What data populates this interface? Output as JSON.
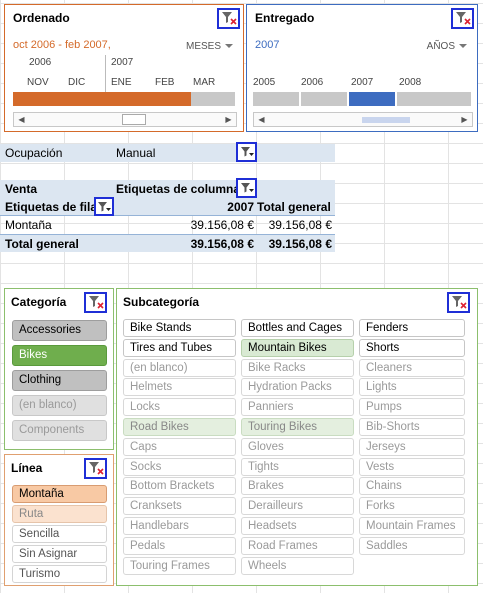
{
  "timeline_ordenado": {
    "title": "Ordenado",
    "range": "oct 2006 - feb 2007,",
    "level": "MESES",
    "years": [
      "2006",
      "2007"
    ],
    "months": [
      "NOV",
      "DIC",
      "ENE",
      "FEB",
      "MAR"
    ],
    "accent": "#d46a2a"
  },
  "timeline_entregado": {
    "title": "Entregado",
    "range": "2007",
    "level": "AÑOS",
    "years": [
      "2005",
      "2006",
      "2007",
      "2008"
    ],
    "accent": "#3d6cc0"
  },
  "pivot": {
    "ocupacion_label": "Ocupación",
    "ocupacion_value": "Manual",
    "venta_label": "Venta",
    "col_labels": "Etiquetas de columna",
    "row_labels": "Etiquetas de fila",
    "col_2007": "2007",
    "col_total": "Total general",
    "row1_name": "Montaña",
    "row1_2007": "39.156,08 €",
    "row1_total": "39.156,08 €",
    "total_name": "Total general",
    "total_2007": "39.156,08 €",
    "total_total": "39.156,08 €"
  },
  "categoria": {
    "title": "Categoría",
    "items": [
      "Accessories",
      "Bikes",
      "Clothing",
      "(en blanco)",
      "Components"
    ]
  },
  "linea": {
    "title": "Línea",
    "items": [
      "Montaña",
      "Ruta",
      "Sencilla",
      "Sin Asignar",
      "Turismo"
    ]
  },
  "subcategoria": {
    "title": "Subcategoría",
    "items": [
      "Bike Stands",
      "Bottles and Cages",
      "Fenders",
      "Tires and Tubes",
      "Mountain Bikes",
      "Shorts",
      "(en blanco)",
      "Bike Racks",
      "Cleaners",
      "Helmets",
      "Hydration Packs",
      "Lights",
      "Locks",
      "Panniers",
      "Pumps",
      "Road Bikes",
      "Touring Bikes",
      "Bib-Shorts",
      "Caps",
      "Gloves",
      "Jerseys",
      "Socks",
      "Tights",
      "Vests",
      "Bottom Brackets",
      "Brakes",
      "Chains",
      "Cranksets",
      "Derailleurs",
      "Forks",
      "Handlebars",
      "Headsets",
      "Mountain Frames",
      "Pedals",
      "Road Frames",
      "Saddles",
      "Touring Frames",
      "Wheels"
    ]
  }
}
